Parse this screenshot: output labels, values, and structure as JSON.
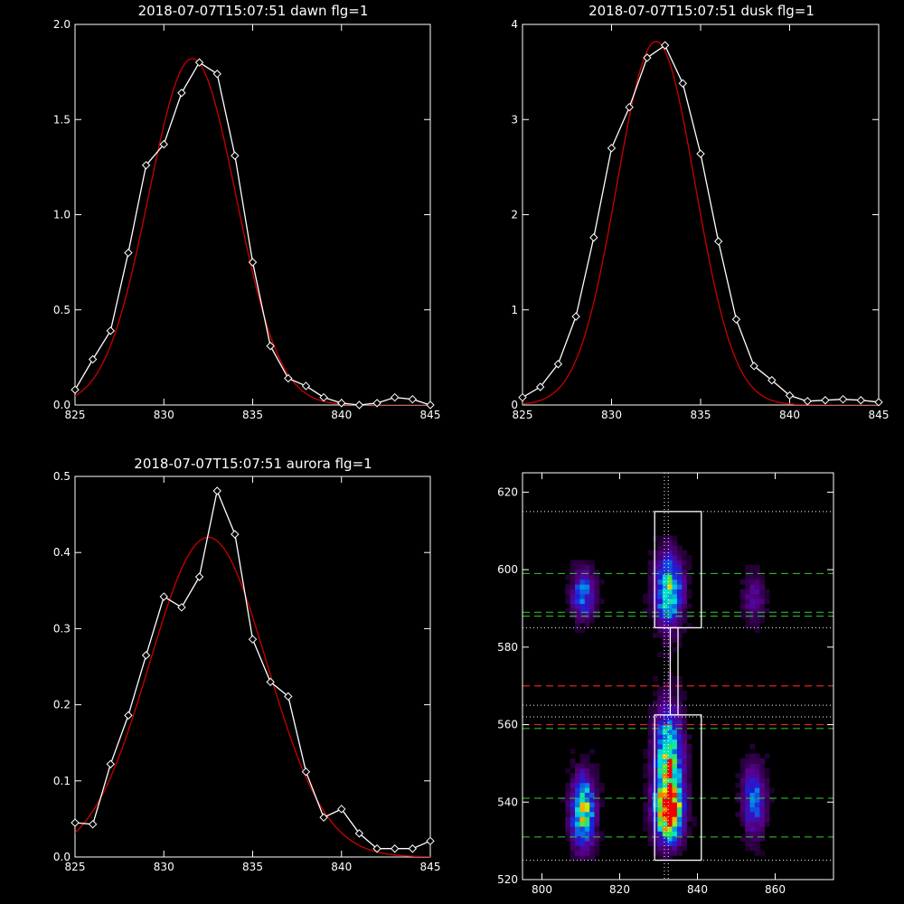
{
  "chart_data": [
    {
      "type": "line",
      "title": "2018-07-07T15:07:51 dawn flg=1",
      "xlim": [
        825,
        845
      ],
      "ylim": [
        0,
        2.0
      ],
      "xticks": [
        "825",
        "830",
        "835",
        "840",
        "845"
      ],
      "yticks": [
        "0.0",
        "0.5",
        "1.0",
        "1.5",
        "2.0"
      ],
      "colors": {
        "measured": "#ffffff",
        "fit": "#cc0000"
      },
      "series": [
        {
          "x": [
            825,
            826,
            827,
            828,
            829,
            830,
            831,
            832,
            833,
            834,
            835,
            836,
            837,
            838,
            839,
            840,
            841,
            842,
            843,
            844,
            845
          ],
          "values": [
            0.08,
            0.24,
            0.39,
            0.8,
            1.26,
            1.37,
            1.64,
            1.8,
            1.74,
            1.31,
            0.75,
            0.31,
            0.14,
            0.1,
            0.04,
            0.01,
            0.0,
            0.01,
            0.04,
            0.03,
            0.0
          ]
        }
      ],
      "fit": {
        "amplitude": 1.82,
        "center": 831.6,
        "sigma": 2.45
      }
    },
    {
      "type": "line",
      "title": "2018-07-07T15:07:51 dusk flg=1",
      "xlim": [
        825,
        845
      ],
      "ylim": [
        0,
        4
      ],
      "xticks": [
        "825",
        "830",
        "835",
        "840",
        "845"
      ],
      "yticks": [
        "0",
        "1",
        "2",
        "3",
        "4"
      ],
      "colors": {
        "measured": "#ffffff",
        "fit": "#cc0000"
      },
      "series": [
        {
          "x": [
            825,
            826,
            827,
            828,
            829,
            830,
            831,
            832,
            833,
            834,
            835,
            836,
            837,
            838,
            839,
            840,
            841,
            842,
            843,
            844,
            845
          ],
          "values": [
            0.08,
            0.19,
            0.43,
            0.93,
            1.76,
            2.7,
            3.13,
            3.65,
            3.78,
            3.38,
            2.64,
            1.72,
            0.9,
            0.41,
            0.26,
            0.1,
            0.04,
            0.05,
            0.06,
            0.05,
            0.03
          ]
        }
      ],
      "fit": {
        "amplitude": 3.82,
        "center": 832.5,
        "sigma": 2.2
      }
    },
    {
      "type": "line",
      "title": "2018-07-07T15:07:51 aurora flg=1",
      "xlim": [
        825,
        845
      ],
      "ylim": [
        0,
        0.5
      ],
      "xticks": [
        "825",
        "830",
        "835",
        "840",
        "845"
      ],
      "yticks": [
        "0.0",
        "0.1",
        "0.2",
        "0.3",
        "0.4",
        "0.5"
      ],
      "colors": {
        "measured": "#ffffff",
        "fit": "#cc0000"
      },
      "series": [
        {
          "x": [
            825,
            826,
            827,
            828,
            829,
            830,
            831,
            832,
            833,
            834,
            835,
            836,
            837,
            838,
            839,
            840,
            841,
            842,
            843,
            844,
            845
          ],
          "values": [
            0.045,
            0.043,
            0.122,
            0.186,
            0.265,
            0.342,
            0.328,
            0.368,
            0.481,
            0.424,
            0.286,
            0.23,
            0.211,
            0.112,
            0.052,
            0.063,
            0.031,
            0.011,
            0.011,
            0.011,
            0.021
          ]
        }
      ],
      "fit": {
        "amplitude": 0.42,
        "center": 832.5,
        "sigma": 3.3
      }
    },
    {
      "type": "heatmap",
      "xlim": [
        795,
        875
      ],
      "ylim": [
        520,
        625
      ],
      "xticks": [
        "800",
        "820",
        "840",
        "860"
      ],
      "yticks": [
        "520",
        "540",
        "560",
        "580",
        "600",
        "620"
      ],
      "bands": [
        {
          "center": 810,
          "width": 2.0,
          "blobs": [
            [
              593,
              4,
              0.45
            ],
            [
              537,
              6,
              0.75
            ]
          ]
        },
        {
          "center": 832,
          "width": 2.3,
          "blobs": [
            [
              594,
              6,
              0.7
            ],
            [
              550,
              9,
              0.75
            ],
            [
              537,
              5,
              1.0
            ]
          ]
        },
        {
          "center": 854,
          "width": 2.0,
          "blobs": [
            [
              592,
              4,
              0.2
            ],
            [
              540,
              6,
              0.4
            ]
          ]
        }
      ],
      "dotted_white_lines_y": [
        615,
        585,
        565,
        562,
        525
      ],
      "dotted_white_lines_x": [
        831.5,
        832.5
      ],
      "dashed_green_lines_y": [
        599,
        589,
        588,
        559,
        541,
        531
      ],
      "dashed_red_lines_y": [
        570,
        560
      ],
      "colors": {
        "boxes": "#ffffff",
        "green": "#33cc33",
        "red": "#dd2222",
        "dotted": "#ffffff"
      }
    }
  ]
}
